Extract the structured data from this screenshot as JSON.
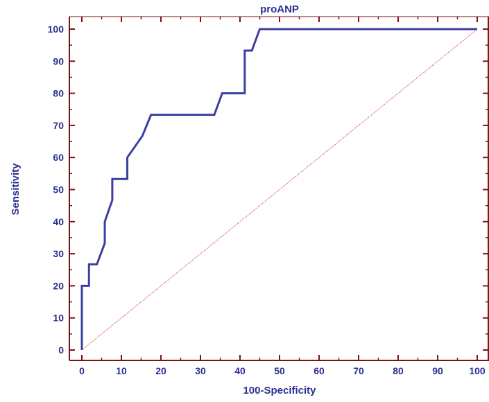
{
  "chart_data": {
    "type": "line",
    "title": "proANP",
    "xlabel": "100-Specificity",
    "ylabel": "Sensitivity",
    "xlim": [
      0,
      100
    ],
    "ylim": [
      0,
      100
    ],
    "xticks": [
      0,
      10,
      20,
      30,
      40,
      50,
      60,
      70,
      80,
      90,
      100
    ],
    "yticks": [
      0,
      10,
      20,
      30,
      40,
      50,
      60,
      70,
      80,
      90,
      100
    ],
    "grid": false,
    "series": [
      {
        "role": "roc-curve",
        "color": "#3b3f9f",
        "x": [
          0,
          0,
          1.8,
          1.8,
          3.8,
          5.8,
          5.8,
          7.7,
          7.7,
          11.5,
          11.5,
          15.3,
          17.5,
          33.5,
          35.5,
          41.2,
          41.2,
          43.0,
          45.0,
          100
        ],
        "y": [
          0,
          20,
          20,
          26.7,
          26.7,
          33.3,
          40,
          46.7,
          53.3,
          53.3,
          60,
          66.7,
          73.3,
          73.3,
          80,
          80,
          93.3,
          93.3,
          100,
          100
        ]
      },
      {
        "role": "reference-diagonal",
        "color": "#d9534f",
        "x": [
          0,
          100
        ],
        "y": [
          0,
          100
        ]
      }
    ],
    "axis_color": "#7a1515"
  }
}
